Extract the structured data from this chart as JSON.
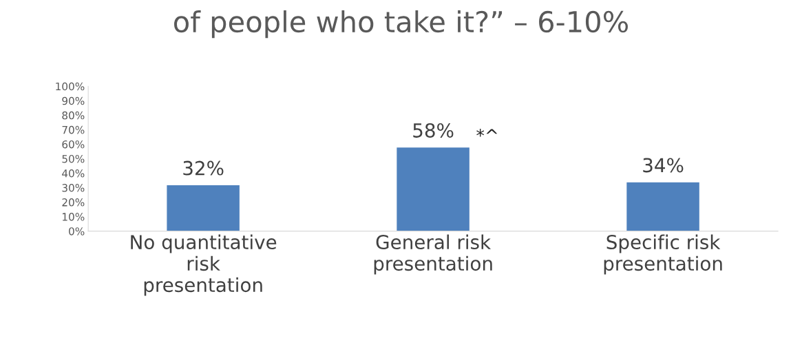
{
  "chart_data": {
    "type": "bar",
    "title": "of people who take it?” – 6-10%",
    "categories": [
      "No quantitative risk presentation",
      "General risk presentation",
      "Specific risk presentation"
    ],
    "values": [
      32,
      58,
      34
    ],
    "color": "#4f81bd",
    "value_labels": [
      "32%",
      "58%",
      "34%"
    ],
    "annotations": [
      {
        "text": "*^",
        "x": "General risk presentation",
        "y": 58
      }
    ],
    "ylim": [
      0,
      100
    ],
    "yticks": [
      {
        "value": 0,
        "label": "0%"
      },
      {
        "value": 10,
        "label": "10%"
      },
      {
        "value": 20,
        "label": "20%"
      },
      {
        "value": 30,
        "label": "30%"
      },
      {
        "value": 40,
        "label": "40%"
      },
      {
        "value": 50,
        "label": "50%"
      },
      {
        "value": 60,
        "label": "60%"
      },
      {
        "value": 70,
        "label": "70%"
      },
      {
        "value": 80,
        "label": "80%"
      },
      {
        "value": 90,
        "label": "90%"
      },
      {
        "value": 100,
        "label": "100%"
      }
    ],
    "grid": false,
    "legend": false
  }
}
